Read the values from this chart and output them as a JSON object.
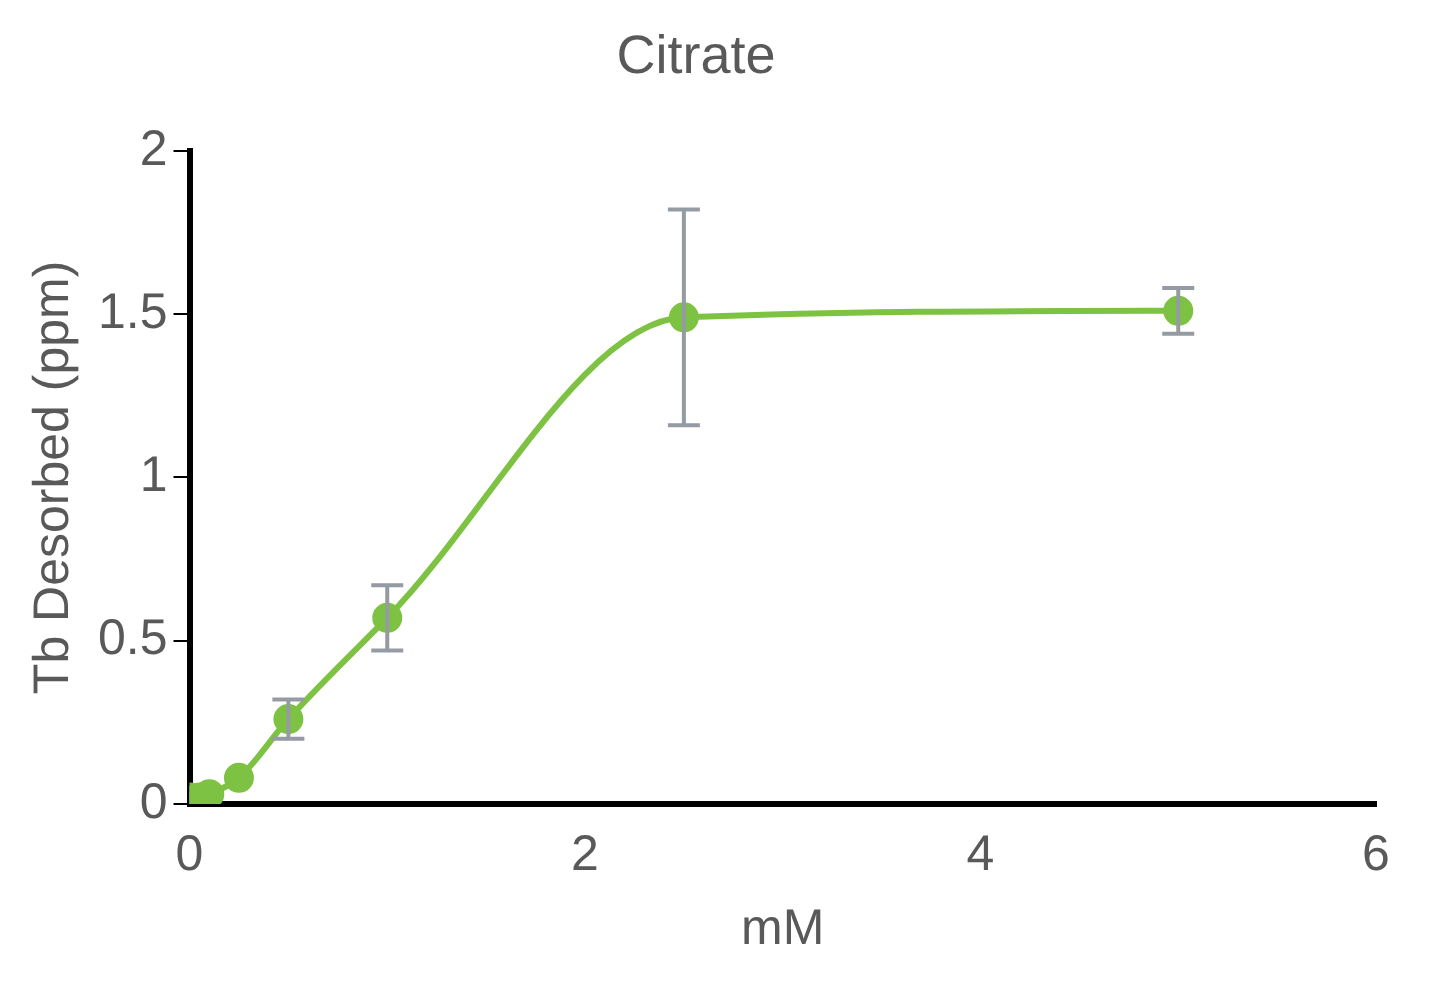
{
  "chart_data": {
    "type": "line",
    "title": "Citrate",
    "xlabel": "mM",
    "ylabel": "Tb Desorbed (ppm)",
    "x": [
      0,
      0.05,
      0.1,
      0.25,
      0.5,
      1,
      2.5,
      5
    ],
    "series": [
      {
        "color": "#7dc242",
        "values": [
          0.02,
          0.02,
          0.03,
          0.08,
          0.26,
          0.57,
          1.49,
          1.51
        ],
        "errors": [
          null,
          null,
          null,
          null,
          0.06,
          0.1,
          0.33,
          0.07
        ]
      }
    ],
    "xlim": [
      0,
      6
    ],
    "xticks": [
      0,
      2,
      4,
      6
    ],
    "ylim": [
      0,
      2
    ],
    "yticks": [
      0,
      0.5,
      1,
      1.5,
      2
    ],
    "grid": false,
    "legend": false,
    "marker": "circle",
    "line_style": "solid"
  }
}
